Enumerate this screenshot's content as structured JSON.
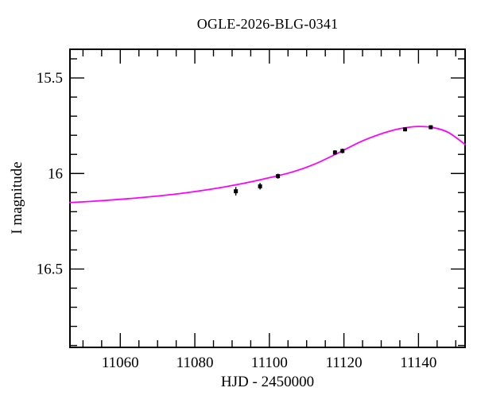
{
  "chart_data": {
    "type": "scatter",
    "title": "OGLE-2026-BLG-0341",
    "xlabel": "HJD - 2450000",
    "ylabel": "I magnitude",
    "xlim": [
      11046.5,
      11152.5
    ],
    "ylim": [
      15.35,
      16.91
    ],
    "y_inverted": true,
    "grid": false,
    "legend_position": "none",
    "x_major_ticks": [
      {
        "value": 11060,
        "label": "11060"
      },
      {
        "value": 11080,
        "label": "11080"
      },
      {
        "value": 11100,
        "label": "11100"
      },
      {
        "value": 11120,
        "label": "11120"
      },
      {
        "value": 11140,
        "label": "11140"
      }
    ],
    "x_minor_step": 5,
    "y_major_ticks": [
      {
        "value": 15.5,
        "label": "15.5"
      },
      {
        "value": 16.0,
        "label": "16"
      },
      {
        "value": 16.5,
        "label": "16.5"
      }
    ],
    "y_minor_step": 0.1,
    "colors": {
      "model_curve": "#ff00ff",
      "data_points": "#000000",
      "frame": "#000000"
    },
    "series": [
      {
        "name": "model-light-curve",
        "type": "line",
        "color": "#ff00ff",
        "points": [
          [
            11046.5,
            16.152
          ],
          [
            11052,
            16.146
          ],
          [
            11058,
            16.138
          ],
          [
            11064,
            16.129
          ],
          [
            11070,
            16.118
          ],
          [
            11076,
            16.105
          ],
          [
            11082,
            16.089
          ],
          [
            11088,
            16.07
          ],
          [
            11094,
            16.048
          ],
          [
            11100,
            16.022
          ],
          [
            11106,
            15.993
          ],
          [
            11112,
            15.952
          ],
          [
            11118,
            15.897
          ],
          [
            11124,
            15.838
          ],
          [
            11128,
            15.806
          ],
          [
            11132,
            15.78
          ],
          [
            11136,
            15.762
          ],
          [
            11140,
            15.754
          ],
          [
            11144,
            15.76
          ],
          [
            11148,
            15.785
          ],
          [
            11152.5,
            15.848
          ]
        ]
      },
      {
        "name": "I-band-observations",
        "type": "scatter",
        "marker": "square",
        "marker_size": 5,
        "color": "#000000",
        "points": [
          {
            "x": 11091.0,
            "y": 16.093,
            "err": 0.022
          },
          {
            "x": 11097.5,
            "y": 16.067,
            "err": 0.017
          },
          {
            "x": 11102.3,
            "y": 16.014,
            "err": 0.013
          },
          {
            "x": 11117.6,
            "y": 15.89,
            "err": 0.012
          },
          {
            "x": 11119.6,
            "y": 15.882,
            "err": 0.012
          },
          {
            "x": 11136.4,
            "y": 15.769,
            "err": 0.01
          },
          {
            "x": 11143.3,
            "y": 15.758,
            "err": 0.01
          }
        ]
      }
    ]
  }
}
